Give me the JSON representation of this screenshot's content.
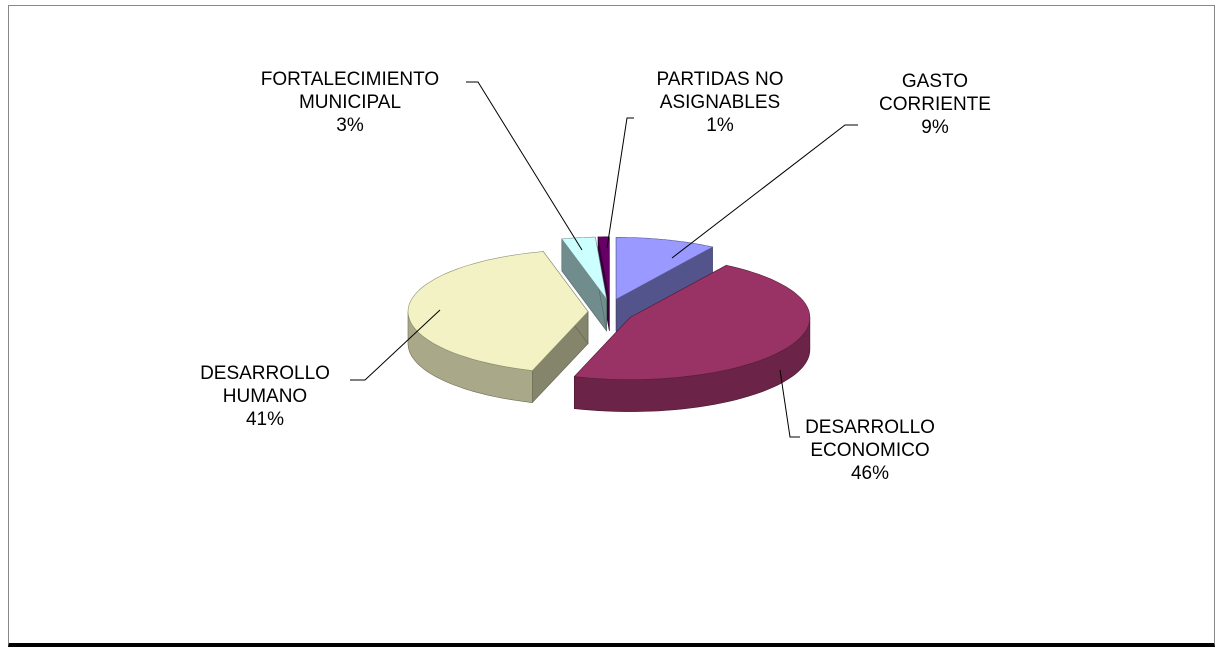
{
  "chart_data": {
    "type": "pie3d",
    "categories": [
      "GASTO CORRIENTE",
      "DESARROLLO ECONOMICO",
      "DESARROLLO HUMANO",
      "FORTALECIMIENTO MUNICIPAL",
      "PARTIDAS NO ASIGNABLES"
    ],
    "values": [
      9,
      46,
      41,
      3,
      1
    ],
    "value_labels": [
      "9%",
      "46%",
      "41%",
      "3%",
      "1%"
    ],
    "colors": [
      "#9999ff",
      "#993366",
      "#f2f2c4",
      "#ccffff",
      "#660066"
    ]
  }
}
